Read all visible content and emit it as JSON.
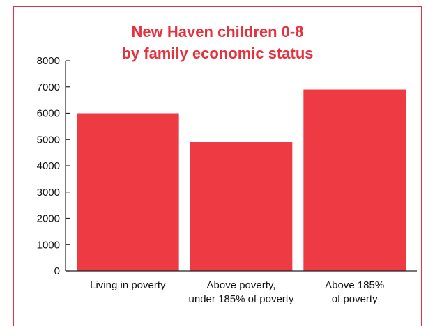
{
  "colors": {
    "accent": "#e5323f",
    "bar": "#ee3a43",
    "axis": "#222222"
  },
  "chart_data": {
    "type": "bar",
    "title_lines": [
      "New Haven children 0-8",
      "by family economic status"
    ],
    "xlabel": "",
    "ylabel": "",
    "ylim": [
      0,
      8000
    ],
    "yticks": [
      0,
      1000,
      2000,
      3000,
      4000,
      5000,
      6000,
      7000,
      8000
    ],
    "grid": false,
    "categories": [
      [
        "Living in poverty"
      ],
      [
        "Above poverty,",
        "under 185% of poverty"
      ],
      [
        "Above 185%",
        "of poverty"
      ]
    ],
    "values": [
      6000,
      4900,
      6900
    ]
  }
}
